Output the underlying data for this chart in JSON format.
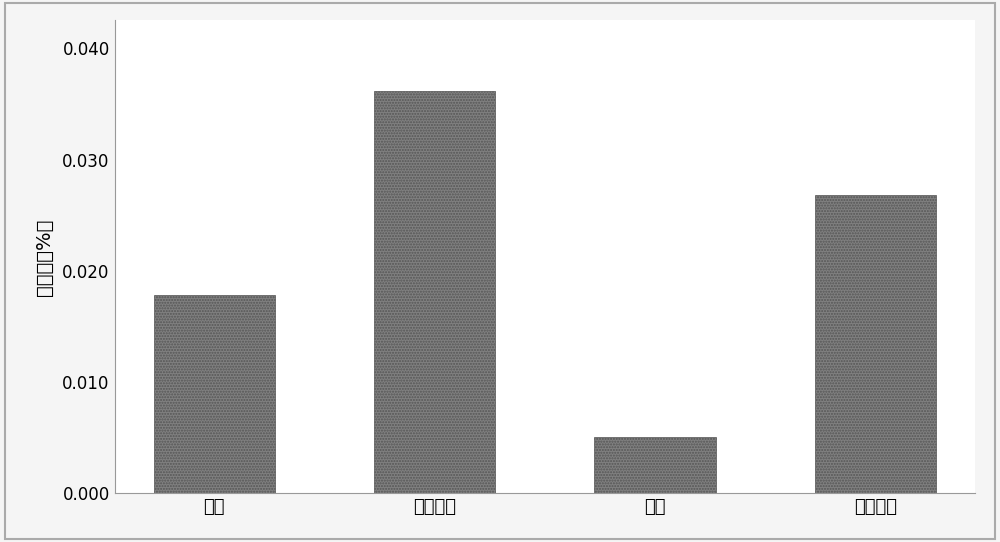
{
  "categories": [
    "甲醇",
    "无水乙醇",
    "乙腧",
    "乙酸乙酯"
  ],
  "values": [
    0.0178,
    0.0362,
    0.0051,
    0.0268
  ],
  "bar_color": "#808080",
  "bar_edgecolor": "#666666",
  "ylabel": "提取率（%）",
  "ylim": [
    0,
    0.0425
  ],
  "yticks": [
    0.0,
    0.01,
    0.02,
    0.03,
    0.04
  ],
  "ytick_labels": [
    "0.000",
    "0.010",
    "0.020",
    "0.030",
    "0.040"
  ],
  "background_color": "#f5f5f5",
  "plot_bg_color": "#ffffff",
  "border_color": "#aaaaaa",
  "ylabel_fontsize": 14,
  "tick_fontsize": 12,
  "xtick_fontsize": 13,
  "bar_width": 0.55
}
